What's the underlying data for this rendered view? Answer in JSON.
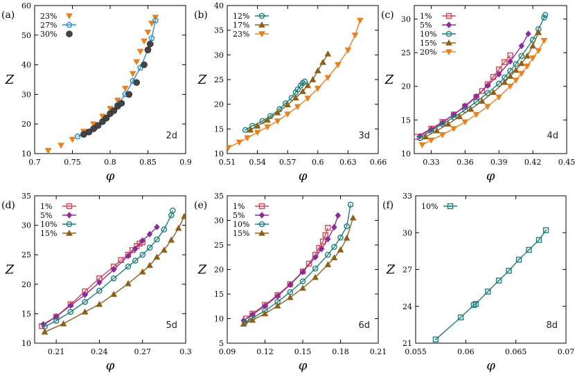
{
  "chart_data": [
    {
      "type": "scatter",
      "panel": "(a)",
      "dimension_label": "2d",
      "xlabel": "φ",
      "ylabel": "Z",
      "xlim": [
        0.7,
        0.9
      ],
      "ylim": [
        10,
        60
      ],
      "xticks": [
        "0.7",
        "0.75",
        "0.8",
        "0.85",
        "0.9"
      ],
      "yticks": [
        "10",
        "20",
        "30",
        "40",
        "50",
        "60"
      ],
      "series": [
        {
          "name": "23%",
          "color": "#e8801e",
          "marker": "triangle-down",
          "line": false,
          "x": [
            0.718,
            0.735,
            0.75,
            0.765,
            0.778,
            0.79,
            0.8,
            0.81,
            0.82,
            0.83,
            0.835,
            0.84,
            0.845,
            0.85,
            0.855,
            0.86
          ],
          "y": [
            11,
            12.8,
            14.8,
            17.5,
            20,
            22.6,
            25.2,
            28,
            32,
            37,
            41,
            44.5,
            48,
            51,
            54,
            56
          ]
        },
        {
          "name": "27%",
          "color": "#2a8fd8",
          "marker": "pentagon",
          "line": true,
          "x": [
            0.757,
            0.77,
            0.78,
            0.79,
            0.8,
            0.81,
            0.82,
            0.83,
            0.84,
            0.85,
            0.855,
            0.86
          ],
          "y": [
            15.8,
            17.2,
            18.8,
            21,
            23.5,
            26.5,
            30,
            34.5,
            39,
            45,
            49,
            55
          ]
        },
        {
          "name": "30%",
          "color": "#444444",
          "marker": "filled-circle",
          "line": false,
          "x": [
            0.765,
            0.772,
            0.778,
            0.784,
            0.79,
            0.795,
            0.8,
            0.805,
            0.81,
            0.815,
            0.825,
            0.835,
            0.845,
            0.85,
            0.853
          ],
          "y": [
            16.5,
            17.3,
            18.4,
            19.5,
            20.8,
            22,
            23.5,
            24.5,
            26,
            27,
            30,
            34,
            40,
            45,
            47
          ]
        }
      ]
    },
    {
      "type": "line",
      "panel": "(b)",
      "dimension_label": "3d",
      "xlabel": "φ",
      "ylabel": "Z",
      "xlim": [
        0.51,
        0.66
      ],
      "ylim": [
        10,
        40
      ],
      "xticks": [
        "0.51",
        "0.54",
        "0.57",
        "0.6",
        "0.63",
        "0.66"
      ],
      "yticks": [
        "10",
        "15",
        "20",
        "25",
        "30",
        "35",
        "40"
      ],
      "series": [
        {
          "name": "12%",
          "color": "#1a7f7a",
          "marker": "circle-dot",
          "x": [
            0.528,
            0.535,
            0.545,
            0.553,
            0.562,
            0.568,
            0.574,
            0.578,
            0.58,
            0.583,
            0.585,
            0.587
          ],
          "y": [
            14.8,
            15.6,
            16.6,
            17.6,
            19,
            20.2,
            21.3,
            22.4,
            23,
            23.8,
            24.3,
            24.6
          ]
        },
        {
          "name": "17%",
          "color": "#8f5f1a",
          "marker": "triangle-up",
          "x": [
            0.533,
            0.54,
            0.55,
            0.56,
            0.57,
            0.578,
            0.585,
            0.59,
            0.595,
            0.6,
            0.605,
            0.61
          ],
          "y": [
            14.8,
            15.6,
            16.8,
            18.3,
            19.9,
            21.3,
            22.6,
            23.8,
            25,
            26.8,
            28.5,
            30.2
          ]
        },
        {
          "name": "23%",
          "color": "#e8801e",
          "marker": "triangle-down",
          "x": [
            0.511,
            0.522,
            0.53,
            0.54,
            0.55,
            0.56,
            0.57,
            0.58,
            0.59,
            0.6,
            0.61,
            0.62,
            0.63,
            0.637,
            0.642
          ],
          "y": [
            11.2,
            12.3,
            13.2,
            14.3,
            15.4,
            16.6,
            18,
            19.5,
            21.2,
            23.2,
            25.4,
            28,
            31,
            34,
            37
          ]
        }
      ]
    },
    {
      "type": "line",
      "panel": "(c)",
      "dimension_label": "4d",
      "xlabel": "φ",
      "ylabel": "Z",
      "xlim": [
        0.315,
        0.45
      ],
      "ylim": [
        10,
        32
      ],
      "xticks": [
        "0.33",
        "0.36",
        "0.39",
        "0.42",
        "0.45"
      ],
      "yticks": [
        "10",
        "15",
        "20",
        "25",
        "30"
      ],
      "series": [
        {
          "name": "1%",
          "color": "#d9424f",
          "marker": "square",
          "x": [
            0.317,
            0.33,
            0.34,
            0.35,
            0.36,
            0.37,
            0.375,
            0.38,
            0.385,
            0.39,
            0.395,
            0.4
          ],
          "y": [
            12.5,
            13.7,
            14.7,
            15.8,
            17,
            18.4,
            19.3,
            20.3,
            21.4,
            22.5,
            23.6,
            24.6
          ]
        },
        {
          "name": "5%",
          "color": "#8b2a9c",
          "marker": "diamond",
          "x": [
            0.32,
            0.33,
            0.34,
            0.35,
            0.36,
            0.37,
            0.38,
            0.39,
            0.4,
            0.41,
            0.416
          ],
          "y": [
            12.6,
            13.6,
            14.6,
            15.8,
            17.1,
            18.5,
            20.1,
            21.8,
            23.7,
            26,
            27.8
          ]
        },
        {
          "name": "10%",
          "color": "#1a7f7a",
          "marker": "circle",
          "x": [
            0.32,
            0.33,
            0.34,
            0.35,
            0.36,
            0.37,
            0.38,
            0.39,
            0.395,
            0.4,
            0.405,
            0.41,
            0.42,
            0.425,
            0.43,
            0.431
          ],
          "y": [
            12.3,
            13.4,
            14.4,
            15.4,
            16.5,
            17.7,
            19,
            20.4,
            21.3,
            22.3,
            23.3,
            24.5,
            26.9,
            28.5,
            30.2,
            30.6
          ]
        },
        {
          "name": "15%",
          "color": "#8f5f1a",
          "marker": "triangle-up",
          "x": [
            0.325,
            0.335,
            0.345,
            0.355,
            0.365,
            0.375,
            0.385,
            0.395,
            0.4,
            0.405,
            0.41,
            0.415,
            0.42,
            0.425
          ],
          "y": [
            12.5,
            13.4,
            14.4,
            15.5,
            16.6,
            17.8,
            19.1,
            20.6,
            21.5,
            22.4,
            23.4,
            24.5,
            26,
            28
          ]
        },
        {
          "name": "20%",
          "color": "#e8801e",
          "marker": "triangle-down",
          "x": [
            0.322,
            0.33,
            0.34,
            0.35,
            0.36,
            0.37,
            0.38,
            0.39,
            0.4,
            0.405,
            0.41,
            0.415,
            0.42,
            0.425,
            0.43
          ],
          "y": [
            11.3,
            12,
            12.8,
            13.7,
            14.7,
            15.8,
            17,
            18.4,
            20,
            20.9,
            21.9,
            23,
            24.2,
            25.3,
            26.8
          ]
        }
      ]
    },
    {
      "type": "line",
      "panel": "(d)",
      "dimension_label": "5d",
      "xlabel": "φ",
      "ylabel": "Z",
      "xlim": [
        0.195,
        0.3
      ],
      "ylim": [
        10,
        35
      ],
      "xticks": [
        "0.21",
        "0.24",
        "0.27",
        "0.3"
      ],
      "yticks": [
        "10",
        "15",
        "20",
        "25",
        "30",
        "35"
      ],
      "series": [
        {
          "name": "1%",
          "color": "#d9424f",
          "marker": "square",
          "x": [
            0.2,
            0.21,
            0.22,
            0.23,
            0.24,
            0.25,
            0.255,
            0.26,
            0.263,
            0.266,
            0.268,
            0.27
          ],
          "y": [
            12.9,
            14.5,
            16.6,
            18.8,
            21,
            23,
            24.1,
            25,
            25.8,
            26.5,
            26.9,
            27.1
          ]
        },
        {
          "name": "5%",
          "color": "#8b2a9c",
          "marker": "diamond",
          "x": [
            0.201,
            0.21,
            0.22,
            0.23,
            0.24,
            0.25,
            0.26,
            0.265,
            0.27,
            0.275,
            0.28
          ],
          "y": [
            13.2,
            14.5,
            16.4,
            18.2,
            20.3,
            22.5,
            24.8,
            26,
            27.4,
            28.5,
            29.7
          ]
        },
        {
          "name": "10%",
          "color": "#1a7f7a",
          "marker": "circle",
          "x": [
            0.202,
            0.21,
            0.22,
            0.23,
            0.24,
            0.25,
            0.26,
            0.265,
            0.27,
            0.275,
            0.28,
            0.285,
            0.29,
            0.291
          ],
          "y": [
            12.8,
            13.8,
            15.3,
            17,
            18.9,
            21,
            23,
            24,
            25,
            26.2,
            27.6,
            29.3,
            31.7,
            32.5
          ]
        },
        {
          "name": "15%",
          "color": "#8f5f1a",
          "marker": "triangle-up",
          "x": [
            0.202,
            0.215,
            0.23,
            0.24,
            0.25,
            0.26,
            0.27,
            0.275,
            0.28,
            0.285,
            0.29,
            0.295,
            0.299
          ],
          "y": [
            11.9,
            13.3,
            15.3,
            16.6,
            18.3,
            20.1,
            22.1,
            23.2,
            24.6,
            25.8,
            27.5,
            29.5,
            31.5
          ]
        }
      ]
    },
    {
      "type": "line",
      "panel": "(e)",
      "dimension_label": "6d",
      "xlabel": "φ",
      "ylabel": "Z",
      "xlim": [
        0.09,
        0.21
      ],
      "ylim": [
        5,
        35
      ],
      "xticks": [
        "0.09",
        "0.12",
        "0.15",
        "0.18",
        "0.21"
      ],
      "yticks": [
        "5",
        "10",
        "15",
        "20",
        "25",
        "30",
        "35"
      ],
      "series": [
        {
          "name": "1%",
          "color": "#d9424f",
          "marker": "square",
          "x": [
            0.105,
            0.11,
            0.12,
            0.13,
            0.14,
            0.15,
            0.155,
            0.16,
            0.163,
            0.166,
            0.168,
            0.17
          ],
          "y": [
            10,
            11,
            12.8,
            14.8,
            17,
            19.6,
            21.2,
            23,
            24.4,
            25.7,
            27,
            28.5
          ]
        },
        {
          "name": "5%",
          "color": "#8b2a9c",
          "marker": "diamond",
          "x": [
            0.103,
            0.11,
            0.12,
            0.13,
            0.14,
            0.15,
            0.16,
            0.165,
            0.17,
            0.175,
            0.178
          ],
          "y": [
            9.6,
            10.8,
            12.6,
            14.6,
            16.9,
            19.5,
            22.5,
            24.2,
            26.2,
            28.6,
            31
          ]
        },
        {
          "name": "10%",
          "color": "#1a7f7a",
          "marker": "circle",
          "x": [
            0.104,
            0.11,
            0.12,
            0.13,
            0.14,
            0.15,
            0.16,
            0.17,
            0.175,
            0.18,
            0.185,
            0.188
          ],
          "y": [
            9.2,
            10.1,
            11.6,
            13.4,
            15.4,
            17.6,
            20.2,
            23,
            24.6,
            26.5,
            28.8,
            33.2
          ]
        },
        {
          "name": "15%",
          "color": "#8f5f1a",
          "marker": "triangle-up",
          "x": [
            0.103,
            0.11,
            0.12,
            0.13,
            0.14,
            0.15,
            0.16,
            0.17,
            0.175,
            0.18,
            0.185,
            0.19
          ],
          "y": [
            8.9,
            9.7,
            11,
            12.6,
            14.3,
            16.2,
            18.4,
            21,
            22.4,
            24,
            26.4,
            30.5
          ]
        }
      ]
    },
    {
      "type": "line",
      "panel": "(f)",
      "dimension_label": "8d",
      "xlabel": "φ",
      "ylabel": "Z",
      "xlim": [
        0.055,
        0.07
      ],
      "ylim": [
        21,
        33
      ],
      "xticks": [
        "0.055",
        "0.06",
        "0.065",
        "0.07"
      ],
      "yticks": [
        "21",
        "24",
        "27",
        "30",
        "33"
      ],
      "series": [
        {
          "name": "10%",
          "color": "#1a7f7a",
          "marker": "square-dot",
          "x": [
            0.057,
            0.0595,
            0.0608,
            0.061,
            0.0622,
            0.0633,
            0.0643,
            0.0653,
            0.0663,
            0.0673,
            0.068
          ],
          "y": [
            21.3,
            23.1,
            24.1,
            24.2,
            25.2,
            26.1,
            26.9,
            27.8,
            28.6,
            29.4,
            30.2
          ]
        }
      ]
    }
  ]
}
